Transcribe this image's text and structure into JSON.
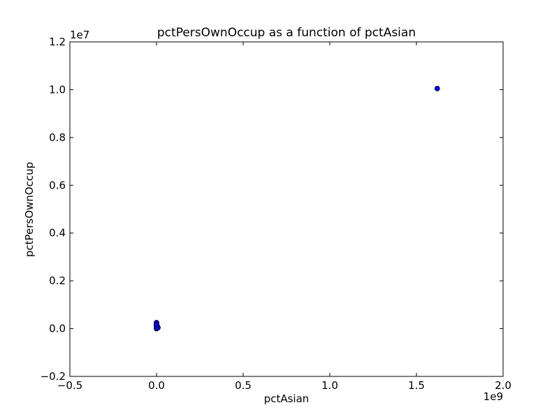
{
  "chart_data": {
    "type": "scatter",
    "title": "pctPersOwnOccup as a function of pctAsian",
    "xlabel": "pctAsian",
    "ylabel": "pctPersOwnOccup",
    "x_offset_label": "1e9",
    "y_offset_label": "1e7",
    "xlim": [
      -500000000,
      2000000000
    ],
    "ylim": [
      -2000000,
      12000000
    ],
    "x_ticks": [
      -500000000,
      0,
      500000000,
      1000000000,
      1500000000,
      2000000000
    ],
    "x_tick_labels": [
      "−0.5",
      "0.0",
      "0.5",
      "1.0",
      "1.5",
      "2.0"
    ],
    "y_ticks": [
      -2000000,
      0,
      2000000,
      4000000,
      6000000,
      8000000,
      10000000,
      12000000
    ],
    "y_tick_labels": [
      "−0.2",
      "0.0",
      "0.2",
      "0.4",
      "0.6",
      "0.8",
      "1.0",
      "1.2"
    ],
    "grid": false,
    "marker_color": "#0000ff",
    "series": [
      {
        "points": [
          {
            "x": 1620000000,
            "y": 10050000
          },
          {
            "x": 0,
            "y": 0
          },
          {
            "x": 1000000,
            "y": 50000
          },
          {
            "x": 2000000,
            "y": 100000
          },
          {
            "x": 0,
            "y": 150000
          },
          {
            "x": 500000,
            "y": 200000
          },
          {
            "x": 0,
            "y": 250000
          },
          {
            "x": 3000000,
            "y": 30000
          },
          {
            "x": 5000000,
            "y": 80000
          },
          {
            "x": 1500000,
            "y": 120000
          },
          {
            "x": 0,
            "y": 60000
          },
          {
            "x": 8000000,
            "y": 40000
          },
          {
            "x": 2500000,
            "y": 10000
          },
          {
            "x": 0,
            "y": 180000
          }
        ]
      }
    ]
  }
}
